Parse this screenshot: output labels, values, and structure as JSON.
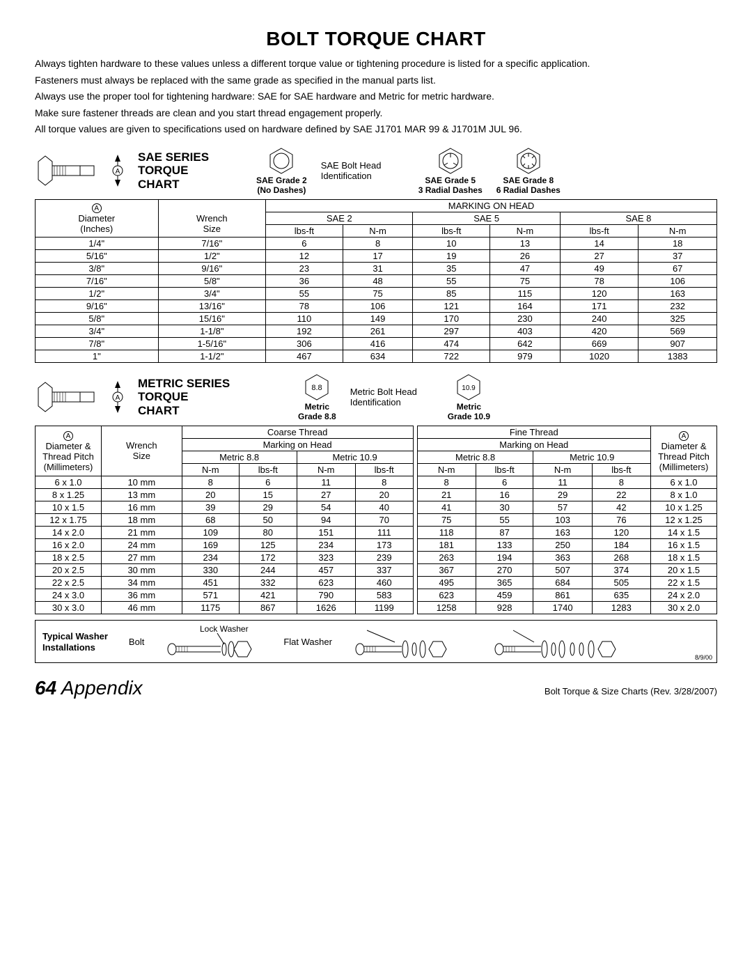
{
  "title": "BOLT TORQUE CHART",
  "intro": [
    "Always tighten hardware to these values unless a different torque value or tightening procedure is listed for a specific application.",
    "Fasteners must always be replaced with the same grade as specified in the manual parts list.",
    "Always use the proper tool for tightening hardware: SAE for SAE hardware and Metric for metric hardware.",
    "Make sure fastener threads are clean and you start thread engagement properly.",
    "All torque values are given to specifications used on hardware defined by SAE J1701 MAR 99 & J1701M JUL 96."
  ],
  "sae": {
    "title1": "SAE SERIES",
    "title2": "TORQUE",
    "title3": "CHART",
    "id_text": "SAE Bolt Head Identification",
    "g2a": "SAE Grade 2",
    "g2b": "(No Dashes)",
    "g5a": "SAE Grade 5",
    "g5b": "3 Radial Dashes",
    "g8a": "SAE Grade 8",
    "g8b": "6 Radial Dashes",
    "h_marking": "MARKING ON HEAD",
    "h_dia": "Diameter",
    "h_dia2": "(Inches)",
    "h_wr": "Wrench",
    "h_wr2": "Size",
    "h_s2": "SAE 2",
    "h_s5": "SAE 5",
    "h_s8": "SAE 8",
    "h_lbs": "lbs-ft",
    "h_nm": "N-m",
    "rows": [
      {
        "d": "1/4\"",
        "w": "7/16\"",
        "v": [
          "6",
          "8",
          "10",
          "13",
          "14",
          "18"
        ]
      },
      {
        "d": "5/16\"",
        "w": "1/2\"",
        "v": [
          "12",
          "17",
          "19",
          "26",
          "27",
          "37"
        ]
      },
      {
        "d": "3/8\"",
        "w": "9/16\"",
        "v": [
          "23",
          "31",
          "35",
          "47",
          "49",
          "67"
        ]
      },
      {
        "d": "7/16\"",
        "w": "5/8\"",
        "v": [
          "36",
          "48",
          "55",
          "75",
          "78",
          "106"
        ]
      },
      {
        "d": "1/2\"",
        "w": "3/4\"",
        "v": [
          "55",
          "75",
          "85",
          "115",
          "120",
          "163"
        ]
      },
      {
        "d": "9/16\"",
        "w": "13/16\"",
        "v": [
          "78",
          "106",
          "121",
          "164",
          "171",
          "232"
        ]
      },
      {
        "d": "5/8\"",
        "w": "15/16\"",
        "v": [
          "110",
          "149",
          "170",
          "230",
          "240",
          "325"
        ]
      },
      {
        "d": "3/4\"",
        "w": "1-1/8\"",
        "v": [
          "192",
          "261",
          "297",
          "403",
          "420",
          "569"
        ]
      },
      {
        "d": "7/8\"",
        "w": "1-5/16\"",
        "v": [
          "306",
          "416",
          "474",
          "642",
          "669",
          "907"
        ]
      },
      {
        "d": "1\"",
        "w": "1-1/2\"",
        "v": [
          "467",
          "634",
          "722",
          "979",
          "1020",
          "1383"
        ]
      }
    ]
  },
  "metric": {
    "title1": "METRIC SERIES",
    "title2": "TORQUE",
    "title3": "CHART",
    "id_text": "Metric Bolt Head Identification",
    "g88a": "Metric",
    "g88b": "Grade 8.8",
    "g88c": "8.8",
    "g109a": "Metric",
    "g109b": "Grade 10.9",
    "g109c": "10.9",
    "h_coarse": "Coarse Thread",
    "h_fine": "Fine Thread",
    "h_marking": "Marking on Head",
    "h_dia": "Diameter &",
    "h_dia2": "Thread Pitch",
    "h_dia3": "(Millimeters)",
    "h_wr": "Wrench",
    "h_wr2": "Size",
    "h_m88": "Metric 8.8",
    "h_m109": "Metric 10.9",
    "h_nm": "N-m",
    "h_lbs": "lbs-ft",
    "rows": [
      {
        "dc": "6 x 1.0",
        "w": "10 mm",
        "c": [
          "8",
          "6",
          "11",
          "8"
        ],
        "f": [
          "8",
          "6",
          "11",
          "8"
        ],
        "df": "6 x 1.0"
      },
      {
        "dc": "8 x 1.25",
        "w": "13 mm",
        "c": [
          "20",
          "15",
          "27",
          "20"
        ],
        "f": [
          "21",
          "16",
          "29",
          "22"
        ],
        "df": "8 x 1.0"
      },
      {
        "dc": "10 x 1.5",
        "w": "16 mm",
        "c": [
          "39",
          "29",
          "54",
          "40"
        ],
        "f": [
          "41",
          "30",
          "57",
          "42"
        ],
        "df": "10 x 1.25"
      },
      {
        "dc": "12 x 1.75",
        "w": "18 mm",
        "c": [
          "68",
          "50",
          "94",
          "70"
        ],
        "f": [
          "75",
          "55",
          "103",
          "76"
        ],
        "df": "12 x 1.25"
      },
      {
        "dc": "14 x 2.0",
        "w": "21 mm",
        "c": [
          "109",
          "80",
          "151",
          "111"
        ],
        "f": [
          "118",
          "87",
          "163",
          "120"
        ],
        "df": "14 x 1.5"
      },
      {
        "dc": "16 x 2.0",
        "w": "24 mm",
        "c": [
          "169",
          "125",
          "234",
          "173"
        ],
        "f": [
          "181",
          "133",
          "250",
          "184"
        ],
        "df": "16 x 1.5"
      },
      {
        "dc": "18 x 2.5",
        "w": "27 mm",
        "c": [
          "234",
          "172",
          "323",
          "239"
        ],
        "f": [
          "263",
          "194",
          "363",
          "268"
        ],
        "df": "18 x 1.5"
      },
      {
        "dc": "20 x 2.5",
        "w": "30 mm",
        "c": [
          "330",
          "244",
          "457",
          "337"
        ],
        "f": [
          "367",
          "270",
          "507",
          "374"
        ],
        "df": "20 x 1.5"
      },
      {
        "dc": "22 x 2.5",
        "w": "34 mm",
        "c": [
          "451",
          "332",
          "623",
          "460"
        ],
        "f": [
          "495",
          "365",
          "684",
          "505"
        ],
        "df": "22 x 1.5"
      },
      {
        "dc": "24 x 3.0",
        "w": "36 mm",
        "c": [
          "571",
          "421",
          "790",
          "583"
        ],
        "f": [
          "623",
          "459",
          "861",
          "635"
        ],
        "df": "24 x 2.0"
      },
      {
        "dc": "30 x 3.0",
        "w": "46 mm",
        "c": [
          "1175",
          "867",
          "1626",
          "1199"
        ],
        "f": [
          "1258",
          "928",
          "1740",
          "1283"
        ],
        "df": "30 x 2.0"
      }
    ]
  },
  "washer": {
    "title1": "Typical Washer",
    "title2": "Installations",
    "bolt": "Bolt",
    "lock": "Lock Washer",
    "flat": "Flat Washer",
    "date": "8/9/00"
  },
  "footer": {
    "page": "64",
    "section": "Appendix",
    "rev": "Bolt Torque & Size Charts (Rev. 3/28/2007)"
  }
}
